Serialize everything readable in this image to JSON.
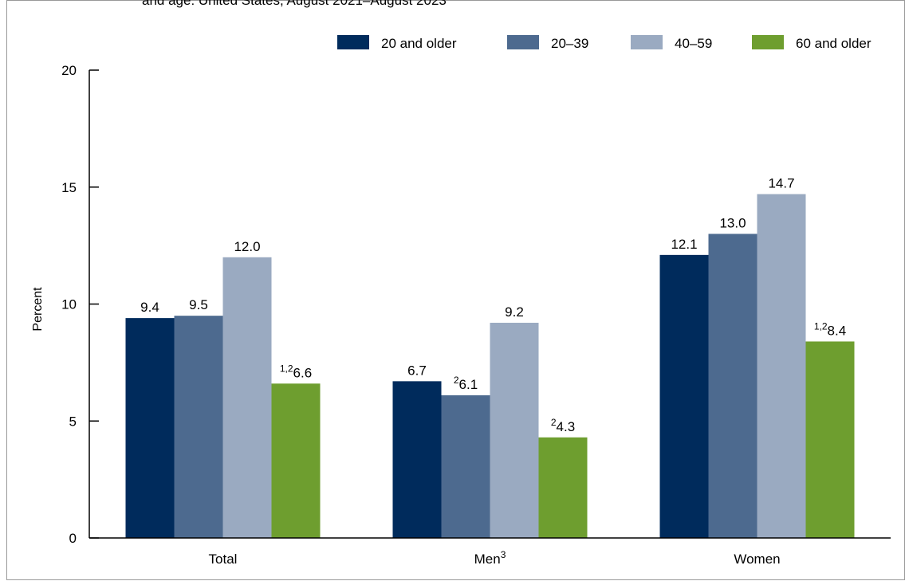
{
  "top_caption": "and age: United States, August 2021–August 2023",
  "chart_data": {
    "type": "bar",
    "title": "",
    "xlabel": "",
    "ylabel": "Percent",
    "ylim": [
      0,
      20
    ],
    "yticks": [
      0,
      5,
      10,
      15,
      20
    ],
    "grid": false,
    "legend_position": "top-right",
    "categories": [
      {
        "label": "Total",
        "superscript": ""
      },
      {
        "label": "Men",
        "superscript": "3"
      },
      {
        "label": "Women",
        "superscript": ""
      }
    ],
    "series": [
      {
        "name": "20 and older",
        "color": "#002b5c",
        "values": [
          9.4,
          6.7,
          12.1
        ],
        "value_labels": [
          "9.4",
          "6.7",
          "12.1"
        ],
        "label_superscripts": [
          "",
          "",
          ""
        ]
      },
      {
        "name": "20–39",
        "color": "#4d6a8f",
        "values": [
          9.5,
          6.1,
          13.0
        ],
        "value_labels": [
          "9.5",
          "6.1",
          "13.0"
        ],
        "label_superscripts": [
          "",
          "2",
          ""
        ]
      },
      {
        "name": "40–59",
        "color": "#9aaac1",
        "values": [
          12.0,
          9.2,
          14.7
        ],
        "value_labels": [
          "12.0",
          "9.2",
          "14.7"
        ],
        "label_superscripts": [
          "",
          "",
          ""
        ]
      },
      {
        "name": "60 and older",
        "color": "#6e9e2f",
        "values": [
          6.6,
          4.3,
          8.4
        ],
        "value_labels": [
          "6.6",
          "4.3",
          "8.4"
        ],
        "label_superscripts": [
          "1,2",
          "2",
          "1,2"
        ]
      }
    ]
  }
}
